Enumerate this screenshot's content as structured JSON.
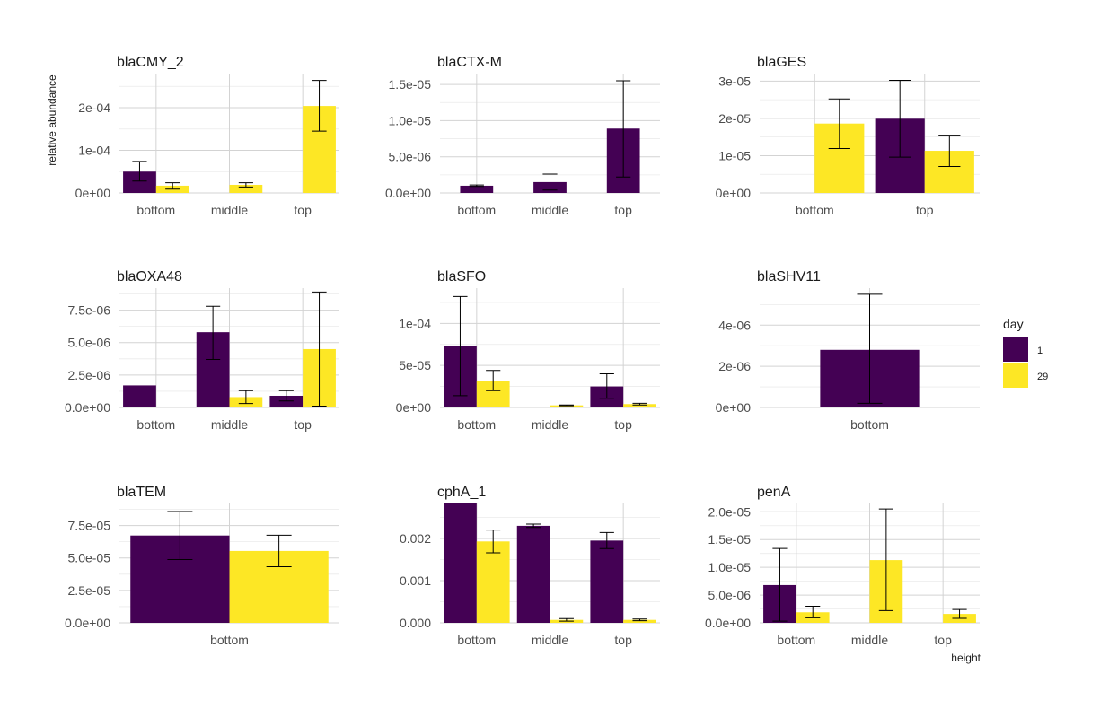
{
  "figure": {
    "y_axis_label": "relative abundance",
    "x_axis_label": "height",
    "legend": {
      "title": "day",
      "entries": [
        {
          "label": "1",
          "color": "#440154"
        },
        {
          "label": "29",
          "color": "#FDE725"
        }
      ]
    }
  },
  "chart_data": [
    {
      "type": "bar",
      "title": "blaCMY_2",
      "categories": [
        "bottom",
        "middle",
        "top"
      ],
      "ylim": [
        0,
        0.00028
      ],
      "yticks": [
        0,
        0.0001,
        0.0002
      ],
      "ytick_labels": [
        "0e+00",
        "1e-04",
        "2e-04"
      ],
      "series": [
        {
          "name": "1",
          "values": [
            5e-05,
            null,
            null
          ],
          "err": [
            [
              2.8e-05,
              7.4e-05
            ],
            null,
            null
          ]
        },
        {
          "name": "29",
          "values": [
            1.7e-05,
            1.9e-05,
            0.000204
          ],
          "err": [
            [
              9e-06,
              2.4e-05
            ],
            [
              1.4e-05,
              2.4e-05
            ],
            [
              0.000145,
              0.000264
            ]
          ]
        }
      ]
    },
    {
      "type": "bar",
      "title": "blaCTX-M",
      "categories": [
        "bottom",
        "middle",
        "top"
      ],
      "ylim": [
        0,
        1.65e-05
      ],
      "yticks": [
        0,
        5e-06,
        1e-05,
        1.5e-05
      ],
      "ytick_labels": [
        "0.0e+00",
        "5.0e-06",
        "1.0e-05",
        "1.5e-05"
      ],
      "series": [
        {
          "name": "1",
          "values": [
            1e-06,
            1.5e-06,
            8.9e-06
          ],
          "err": [
            [
              9e-07,
              1.1e-06
            ],
            [
              4e-07,
              2.6e-06
            ],
            [
              2.2e-06,
              1.55e-05
            ]
          ]
        }
      ]
    },
    {
      "type": "bar",
      "title": "blaGES",
      "categories": [
        "bottom",
        "top"
      ],
      "ylim": [
        0,
        3.2e-05
      ],
      "yticks": [
        0,
        1e-05,
        2e-05,
        3e-05
      ],
      "ytick_labels": [
        "0e+00",
        "1e-05",
        "2e-05",
        "3e-05"
      ],
      "series": [
        {
          "name": "1",
          "values": [
            null,
            1.99e-05
          ],
          "err": [
            null,
            [
              9.6e-06,
              3.02e-05
            ]
          ]
        },
        {
          "name": "29",
          "values": [
            1.86e-05,
            1.13e-05
          ],
          "err": [
            [
              1.19e-05,
              2.52e-05
            ],
            [
              7.1e-06,
              1.55e-05
            ]
          ]
        }
      ]
    },
    {
      "type": "bar",
      "title": "blaOXA48",
      "categories": [
        "bottom",
        "middle",
        "top"
      ],
      "ylim": [
        0,
        9.2e-06
      ],
      "yticks": [
        0,
        2.5e-06,
        5e-06,
        7.5e-06
      ],
      "ytick_labels": [
        "0.0e+00",
        "2.5e-06",
        "5.0e-06",
        "7.5e-06"
      ],
      "series": [
        {
          "name": "1",
          "values": [
            1.7e-06,
            5.8e-06,
            9e-07
          ],
          "err": [
            null,
            [
              3.7e-06,
              7.8e-06
            ],
            [
              5e-07,
              1.3e-06
            ]
          ]
        },
        {
          "name": "29",
          "values": [
            null,
            8e-07,
            4.5e-06
          ],
          "err": [
            null,
            [
              3e-07,
              1.3e-06
            ],
            [
              1e-07,
              8.9e-06
            ]
          ]
        }
      ]
    },
    {
      "type": "bar",
      "title": "blaSFO",
      "categories": [
        "bottom",
        "middle",
        "top"
      ],
      "ylim": [
        0,
        0.000142
      ],
      "yticks": [
        0,
        5e-05,
        0.0001
      ],
      "ytick_labels": [
        "0e+00",
        "5e-05",
        "1e-04"
      ],
      "series": [
        {
          "name": "1",
          "values": [
            7.3e-05,
            null,
            2.5e-05
          ],
          "err": [
            [
              1.4e-05,
              0.000132
            ],
            null,
            [
              1.1e-05,
              4e-05
            ]
          ]
        },
        {
          "name": "29",
          "values": [
            3.2e-05,
            2.5e-06,
            4e-06
          ],
          "err": [
            [
              2e-05,
              4.4e-05
            ],
            [
              2e-06,
              3e-06
            ],
            [
              3e-06,
              5e-06
            ]
          ]
        }
      ]
    },
    {
      "type": "bar",
      "title": "blaSHV11",
      "categories": [
        "bottom"
      ],
      "ylim": [
        0,
        5.8e-06
      ],
      "yticks": [
        0,
        2e-06,
        4e-06
      ],
      "ytick_labels": [
        "0e+00",
        "2e-06",
        "4e-06"
      ],
      "series": [
        {
          "name": "1",
          "values": [
            2.8e-06
          ],
          "err": [
            [
              2e-07,
              5.5e-06
            ]
          ]
        }
      ]
    },
    {
      "type": "bar",
      "title": "blaTEM",
      "categories": [
        "bottom"
      ],
      "ylim": [
        0,
        9.2e-05
      ],
      "yticks": [
        0,
        2.5e-05,
        5e-05,
        7.5e-05
      ],
      "ytick_labels": [
        "0.0e+00",
        "2.5e-05",
        "5.0e-05",
        "7.5e-05"
      ],
      "series": [
        {
          "name": "1",
          "values": [
            6.73e-05
          ],
          "err": [
            [
              4.88e-05,
              8.58e-05
            ]
          ]
        },
        {
          "name": "29",
          "values": [
            5.54e-05
          ],
          "err": [
            [
              4.32e-05,
              6.75e-05
            ]
          ]
        }
      ]
    },
    {
      "type": "bar",
      "title": "cphA_1",
      "categories": [
        "bottom",
        "middle",
        "top"
      ],
      "ylim": [
        0,
        0.00283
      ],
      "yticks": [
        0,
        0.001,
        0.002
      ],
      "ytick_labels": [
        "0.000",
        "0.001",
        "0.002"
      ],
      "series": [
        {
          "name": "1",
          "values": [
            0.00283,
            0.0023,
            0.00195
          ],
          "err": [
            null,
            [
              0.00226,
              0.00234
            ],
            [
              0.00176,
              0.00214
            ]
          ]
        },
        {
          "name": "29",
          "values": [
            0.00193,
            7e-05,
            7e-05
          ],
          "err": [
            [
              0.00166,
              0.0022
            ],
            [
              4e-05,
              0.0001
            ],
            [
              5e-05,
              9e-05
            ]
          ]
        }
      ]
    },
    {
      "type": "bar",
      "title": "penA",
      "categories": [
        "bottom",
        "middle",
        "top"
      ],
      "ylim": [
        0,
        2.15e-05
      ],
      "yticks": [
        0,
        5e-06,
        1e-05,
        1.5e-05,
        2e-05
      ],
      "ytick_labels": [
        "0.0e+00",
        "5.0e-06",
        "1.0e-05",
        "1.5e-05",
        "2.0e-05"
      ],
      "series": [
        {
          "name": "1",
          "values": [
            6.8e-06,
            null,
            null
          ],
          "err": [
            [
              3e-07,
              1.34e-05
            ],
            null,
            null
          ]
        },
        {
          "name": "29",
          "values": [
            1.9e-06,
            1.13e-05,
            1.6e-06
          ],
          "err": [
            [
              9e-07,
              3e-06
            ],
            [
              2.2e-06,
              2.05e-05
            ],
            [
              8e-07,
              2.4e-06
            ]
          ]
        }
      ]
    }
  ]
}
